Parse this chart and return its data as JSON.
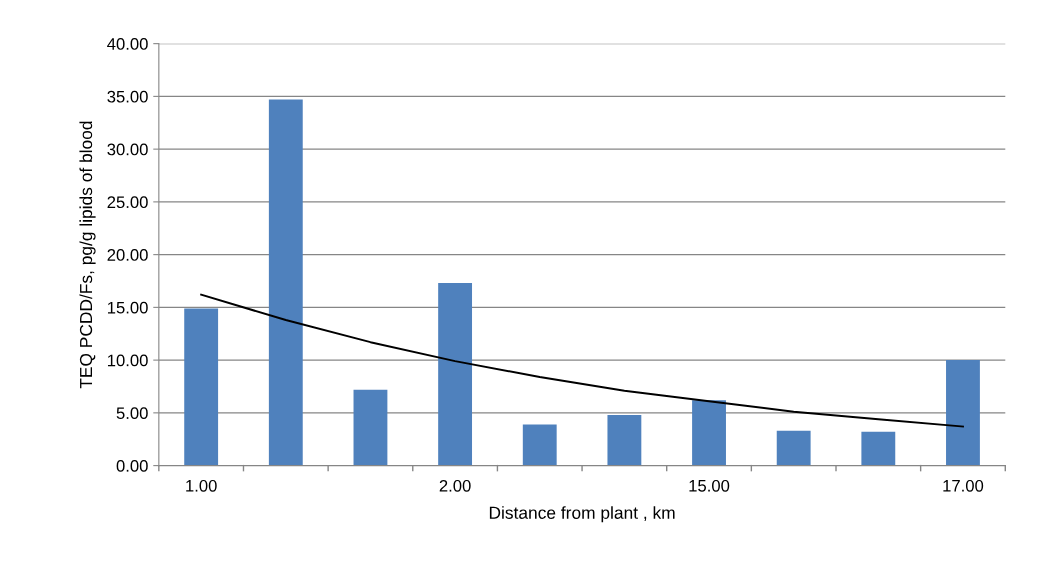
{
  "chart_data": {
    "type": "bar",
    "xlabel": "Distance from plant , km",
    "ylabel": "TEQ PCDD/Fs, pg/g lipids of blood",
    "categories": [
      "1.00",
      null,
      null,
      "2.00",
      null,
      null,
      "15.00",
      null,
      null,
      "17.00"
    ],
    "series": [
      {
        "color": "#4f81bd",
        "values": [
          14.9,
          34.7,
          7.2,
          17.3,
          3.9,
          4.8,
          6.2,
          3.3,
          3.2,
          10.0
        ]
      },
      {
        "type": "line",
        "color": "#000000",
        "marker": "none",
        "line_style": "solid",
        "values": [
          16.2,
          13.8,
          11.7,
          9.9,
          8.4,
          7.1,
          6.1,
          5.1,
          4.4,
          3.7
        ]
      }
    ],
    "ylim": [
      0,
      40
    ],
    "yticks": [
      {
        "value": 0,
        "label": "0.00"
      },
      {
        "value": 5,
        "label": "5.00"
      },
      {
        "value": 10,
        "label": "10.00"
      },
      {
        "value": 15,
        "label": "15.00"
      },
      {
        "value": 20,
        "label": "20.00"
      },
      {
        "value": 25,
        "label": "25.00"
      },
      {
        "value": 30,
        "label": "30.00"
      },
      {
        "value": 35,
        "label": "35.00"
      },
      {
        "value": 40,
        "label": "40.00"
      }
    ],
    "grid": "y",
    "legend": false
  }
}
